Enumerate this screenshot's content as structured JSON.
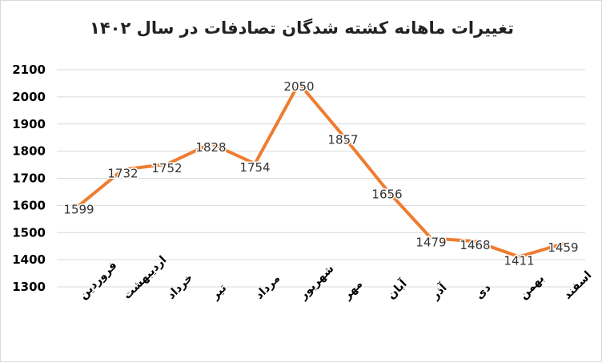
{
  "chart_data": {
    "type": "line",
    "title": "تغییرات ماهانه کشته شدگان تصادفات در سال ۱۴۰۲",
    "categories": [
      "فروردین",
      "اردیبهشت",
      "خرداد",
      "تیر",
      "مرداد",
      "شهریور",
      "مهر",
      "آبان",
      "آذر",
      "دی",
      "بهمن",
      "اسفند"
    ],
    "values": [
      1599,
      1732,
      1752,
      1828,
      1754,
      2050,
      1857,
      1656,
      1479,
      1468,
      1411,
      1459
    ],
    "yticks": [
      "1300",
      "1400",
      "1500",
      "1600",
      "1700",
      "1800",
      "1900",
      "2000",
      "2100"
    ],
    "ylim": [
      1300,
      2100
    ],
    "grid": true,
    "legend": "none",
    "line_color": "#ED7D31",
    "grid_color": "#d9d9d9"
  }
}
